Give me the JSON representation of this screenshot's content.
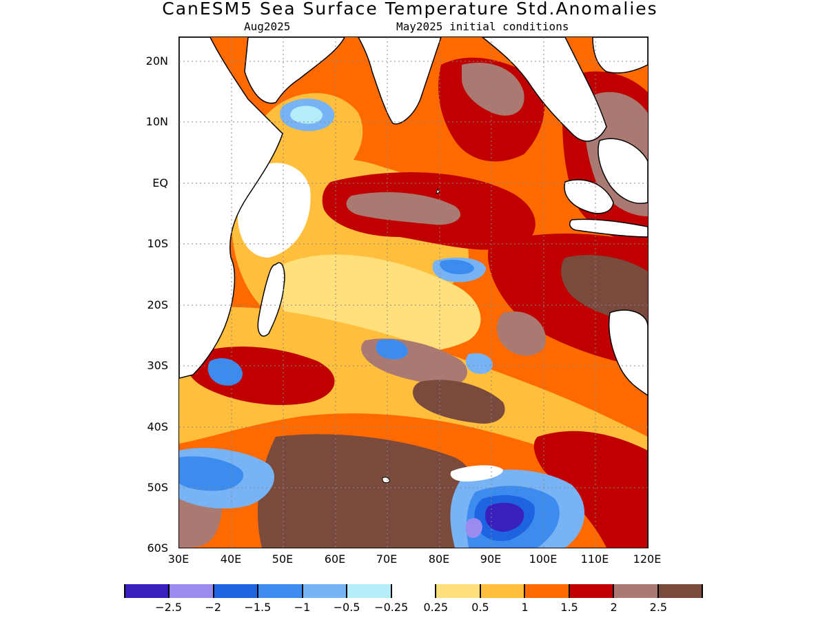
{
  "title": "CanESM5 Sea Surface Temperature Std.Anomalies",
  "subtitle_valid": "Aug2025",
  "subtitle_init": "May2025 initial conditions",
  "map": {
    "region": "Indian Ocean",
    "lon_range": [
      30,
      120
    ],
    "lat_range": [
      -60,
      24
    ],
    "y_ticks": [
      "20N",
      "10N",
      "EQ",
      "10S",
      "20S",
      "30S",
      "40S",
      "50S",
      "60S"
    ],
    "x_ticks": [
      "30E",
      "40E",
      "50E",
      "60E",
      "70E",
      "80E",
      "90E",
      "100E",
      "110E",
      "120E"
    ],
    "grid": "dotted"
  },
  "legend": {
    "colors": [
      "#3a1fbf",
      "#9b8af0",
      "#1e64e0",
      "#3c8cf0",
      "#78b4f5",
      "#b4ecf8",
      "#ffffff",
      "#ffe07a",
      "#ffbe3c",
      "#ff6a00",
      "#c00000",
      "#aa7a72",
      "#7a4a3c"
    ],
    "labels": [
      "−2.5",
      "−2",
      "−1.5",
      "−1",
      "−0.5",
      "−0.25",
      "0.25",
      "0.5",
      "1",
      "1.5",
      "2",
      "2.5"
    ]
  }
}
